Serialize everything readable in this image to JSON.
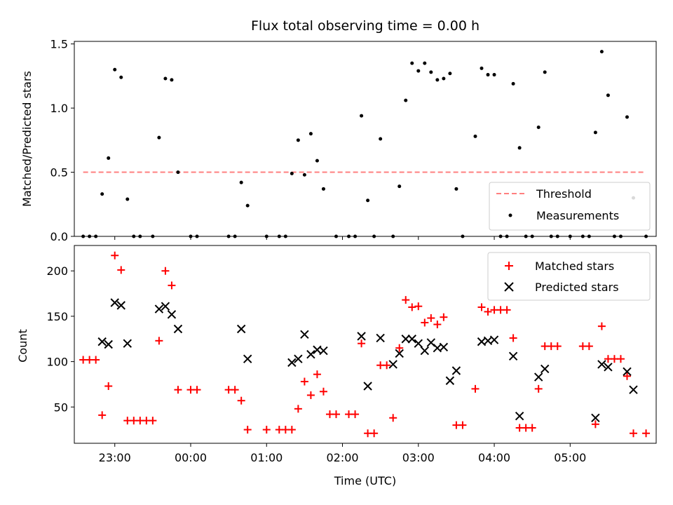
{
  "chart_data": [
    {
      "type": "scatter",
      "title": "Flux total observing time = 0.00 h",
      "xlabel": "",
      "ylabel": "Matched/Predicted stars",
      "xlim": [
        "22:28",
        "06:08"
      ],
      "ylim": [
        0,
        1.52
      ],
      "y_ticks": [
        "0.0",
        "0.5",
        "1.0",
        "1.5"
      ],
      "y_tick_values": [
        0,
        0.5,
        1.0,
        1.5
      ],
      "x_ticks": [
        "23:00",
        "00:00",
        "01:00",
        "02:00",
        "03:00",
        "04:00",
        "05:00"
      ],
      "threshold": {
        "name": "Threshold",
        "value": 0.5,
        "x": [
          "22:35",
          "06:00"
        ],
        "color": "#ff7f7f"
      },
      "legend": {
        "placement": "lower-right",
        "entries": [
          "Threshold",
          "Measurements"
        ]
      },
      "series": [
        {
          "name": "Measurements",
          "color": "#000000",
          "points": [
            [
              "22:35",
              0
            ],
            [
              "22:40",
              0
            ],
            [
              "22:45",
              0
            ],
            [
              "22:50",
              0.33
            ],
            [
              "22:55",
              0.61
            ],
            [
              "23:00",
              1.3
            ],
            [
              "23:05",
              1.24
            ],
            [
              "23:10",
              0.29
            ],
            [
              "23:15",
              0
            ],
            [
              "23:20",
              0
            ],
            [
              "23:30",
              0
            ],
            [
              "23:35",
              0.77
            ],
            [
              "23:40",
              1.23
            ],
            [
              "23:45",
              1.22
            ],
            [
              "23:50",
              0.5
            ],
            [
              "00:00",
              0
            ],
            [
              "00:05",
              0
            ],
            [
              "00:30",
              0
            ],
            [
              "00:35",
              0
            ],
            [
              "00:40",
              0.42
            ],
            [
              "00:45",
              0.24
            ],
            [
              "01:00",
              0
            ],
            [
              "01:10",
              0
            ],
            [
              "01:15",
              0
            ],
            [
              "01:20",
              0.49
            ],
            [
              "01:25",
              0.75
            ],
            [
              "01:30",
              0.48
            ],
            [
              "01:35",
              0.8
            ],
            [
              "01:40",
              0.59
            ],
            [
              "01:45",
              0.37
            ],
            [
              "01:55",
              0
            ],
            [
              "02:05",
              0
            ],
            [
              "02:10",
              0
            ],
            [
              "02:15",
              0.94
            ],
            [
              "02:20",
              0.28
            ],
            [
              "02:25",
              0
            ],
            [
              "02:30",
              0.76
            ],
            [
              "02:40",
              0
            ],
            [
              "02:45",
              0.39
            ],
            [
              "02:50",
              1.06
            ],
            [
              "02:55",
              1.35
            ],
            [
              "03:00",
              1.29
            ],
            [
              "03:05",
              1.35
            ],
            [
              "03:10",
              1.28
            ],
            [
              "03:15",
              1.22
            ],
            [
              "03:20",
              1.23
            ],
            [
              "03:25",
              1.27
            ],
            [
              "03:30",
              0.37
            ],
            [
              "03:35",
              0
            ],
            [
              "03:45",
              0.78
            ],
            [
              "03:50",
              1.31
            ],
            [
              "03:55",
              1.26
            ],
            [
              "04:00",
              1.26
            ],
            [
              "04:05",
              0
            ],
            [
              "04:10",
              0
            ],
            [
              "04:15",
              1.19
            ],
            [
              "04:20",
              0.69
            ],
            [
              "04:25",
              0
            ],
            [
              "04:30",
              0
            ],
            [
              "04:35",
              0.85
            ],
            [
              "04:40",
              1.28
            ],
            [
              "04:45",
              0
            ],
            [
              "04:50",
              0
            ],
            [
              "05:00",
              0
            ],
            [
              "05:10",
              0
            ],
            [
              "05:15",
              0
            ],
            [
              "05:20",
              0.81
            ],
            [
              "05:25",
              1.44
            ],
            [
              "05:30",
              1.1
            ],
            [
              "05:35",
              0
            ],
            [
              "05:40",
              0
            ],
            [
              "05:45",
              0.93
            ],
            [
              "05:50",
              0.3
            ],
            [
              "06:00",
              0
            ]
          ]
        }
      ]
    },
    {
      "type": "scatter",
      "title": "",
      "xlabel": "Time (UTC)",
      "ylabel": "Count",
      "xlim": [
        "22:28",
        "06:08"
      ],
      "ylim": [
        10,
        228
      ],
      "y_ticks": [
        "50",
        "100",
        "150",
        "200"
      ],
      "y_tick_values": [
        50,
        100,
        150,
        200
      ],
      "x_ticks": [
        "23:00",
        "00:00",
        "01:00",
        "02:00",
        "03:00",
        "04:00",
        "05:00"
      ],
      "legend": {
        "placement": "upper-right",
        "entries": [
          "Matched stars",
          "Predicted stars"
        ]
      },
      "series": [
        {
          "name": "Matched stars",
          "color": "#ff0000",
          "marker": "plus",
          "points": [
            [
              "22:35",
              102
            ],
            [
              "22:40",
              102
            ],
            [
              "22:45",
              102
            ],
            [
              "22:50",
              41
            ],
            [
              "22:55",
              73
            ],
            [
              "23:00",
              217
            ],
            [
              "23:05",
              201
            ],
            [
              "23:10",
              35
            ],
            [
              "23:15",
              35
            ],
            [
              "23:20",
              35
            ],
            [
              "23:25",
              35
            ],
            [
              "23:30",
              35
            ],
            [
              "23:35",
              123
            ],
            [
              "23:40",
              200
            ],
            [
              "23:45",
              184
            ],
            [
              "23:50",
              69
            ],
            [
              "00:00",
              69
            ],
            [
              "00:05",
              69
            ],
            [
              "00:30",
              69
            ],
            [
              "00:35",
              69
            ],
            [
              "00:40",
              57
            ],
            [
              "00:45",
              25
            ],
            [
              "01:00",
              25
            ],
            [
              "01:10",
              25
            ],
            [
              "01:15",
              25
            ],
            [
              "01:20",
              25
            ],
            [
              "01:25",
              48
            ],
            [
              "01:30",
              78
            ],
            [
              "01:35",
              63
            ],
            [
              "01:40",
              86
            ],
            [
              "01:45",
              67
            ],
            [
              "01:50",
              42
            ],
            [
              "01:55",
              42
            ],
            [
              "02:05",
              42
            ],
            [
              "02:10",
              42
            ],
            [
              "02:15",
              120
            ],
            [
              "02:20",
              21
            ],
            [
              "02:25",
              21
            ],
            [
              "02:30",
              96
            ],
            [
              "02:35",
              96
            ],
            [
              "02:40",
              38
            ],
            [
              "02:45",
              115
            ],
            [
              "02:50",
              168
            ],
            [
              "02:55",
              160
            ],
            [
              "03:00",
              161
            ],
            [
              "03:05",
              143
            ],
            [
              "03:10",
              148
            ],
            [
              "03:15",
              141
            ],
            [
              "03:20",
              149
            ],
            [
              "03:30",
              30
            ],
            [
              "03:35",
              30
            ],
            [
              "03:45",
              70
            ],
            [
              "03:50",
              160
            ],
            [
              "03:55",
              155
            ],
            [
              "04:00",
              157
            ],
            [
              "04:05",
              157
            ],
            [
              "04:10",
              157
            ],
            [
              "04:15",
              126
            ],
            [
              "04:20",
              27
            ],
            [
              "04:25",
              27
            ],
            [
              "04:30",
              27
            ],
            [
              "04:35",
              70
            ],
            [
              "04:40",
              117
            ],
            [
              "04:45",
              117
            ],
            [
              "04:50",
              117
            ],
            [
              "05:10",
              117
            ],
            [
              "05:15",
              117
            ],
            [
              "05:20",
              31
            ],
            [
              "05:25",
              139
            ],
            [
              "05:30",
              103
            ],
            [
              "05:35",
              103
            ],
            [
              "05:40",
              103
            ],
            [
              "05:45",
              84
            ],
            [
              "05:50",
              21
            ],
            [
              "06:00",
              21
            ]
          ]
        },
        {
          "name": "Predicted stars",
          "color": "#000000",
          "marker": "x",
          "points": [
            [
              "22:50",
              122
            ],
            [
              "22:55",
              119
            ],
            [
              "23:00",
              165
            ],
            [
              "23:05",
              162
            ],
            [
              "23:10",
              120
            ],
            [
              "23:35",
              158
            ],
            [
              "23:40",
              161
            ],
            [
              "23:45",
              152
            ],
            [
              "23:50",
              136
            ],
            [
              "00:40",
              136
            ],
            [
              "00:45",
              103
            ],
            [
              "01:20",
              99
            ],
            [
              "01:25",
              103
            ],
            [
              "01:30",
              130
            ],
            [
              "01:35",
              108
            ],
            [
              "01:40",
              113
            ],
            [
              "01:45",
              112
            ],
            [
              "02:15",
              128
            ],
            [
              "02:20",
              73
            ],
            [
              "02:30",
              126
            ],
            [
              "02:40",
              97
            ],
            [
              "02:45",
              109
            ],
            [
              "02:50",
              125
            ],
            [
              "02:55",
              125
            ],
            [
              "03:00",
              120
            ],
            [
              "03:05",
              112
            ],
            [
              "03:10",
              121
            ],
            [
              "03:15",
              115
            ],
            [
              "03:20",
              116
            ],
            [
              "03:25",
              79
            ],
            [
              "03:30",
              90
            ],
            [
              "03:50",
              122
            ],
            [
              "03:55",
              123
            ],
            [
              "04:00",
              124
            ],
            [
              "04:15",
              106
            ],
            [
              "04:20",
              40
            ],
            [
              "04:35",
              83
            ],
            [
              "04:40",
              92
            ],
            [
              "05:20",
              38
            ],
            [
              "05:25",
              97
            ],
            [
              "05:30",
              94
            ],
            [
              "05:45",
              89
            ],
            [
              "05:50",
              69
            ]
          ]
        }
      ]
    }
  ]
}
